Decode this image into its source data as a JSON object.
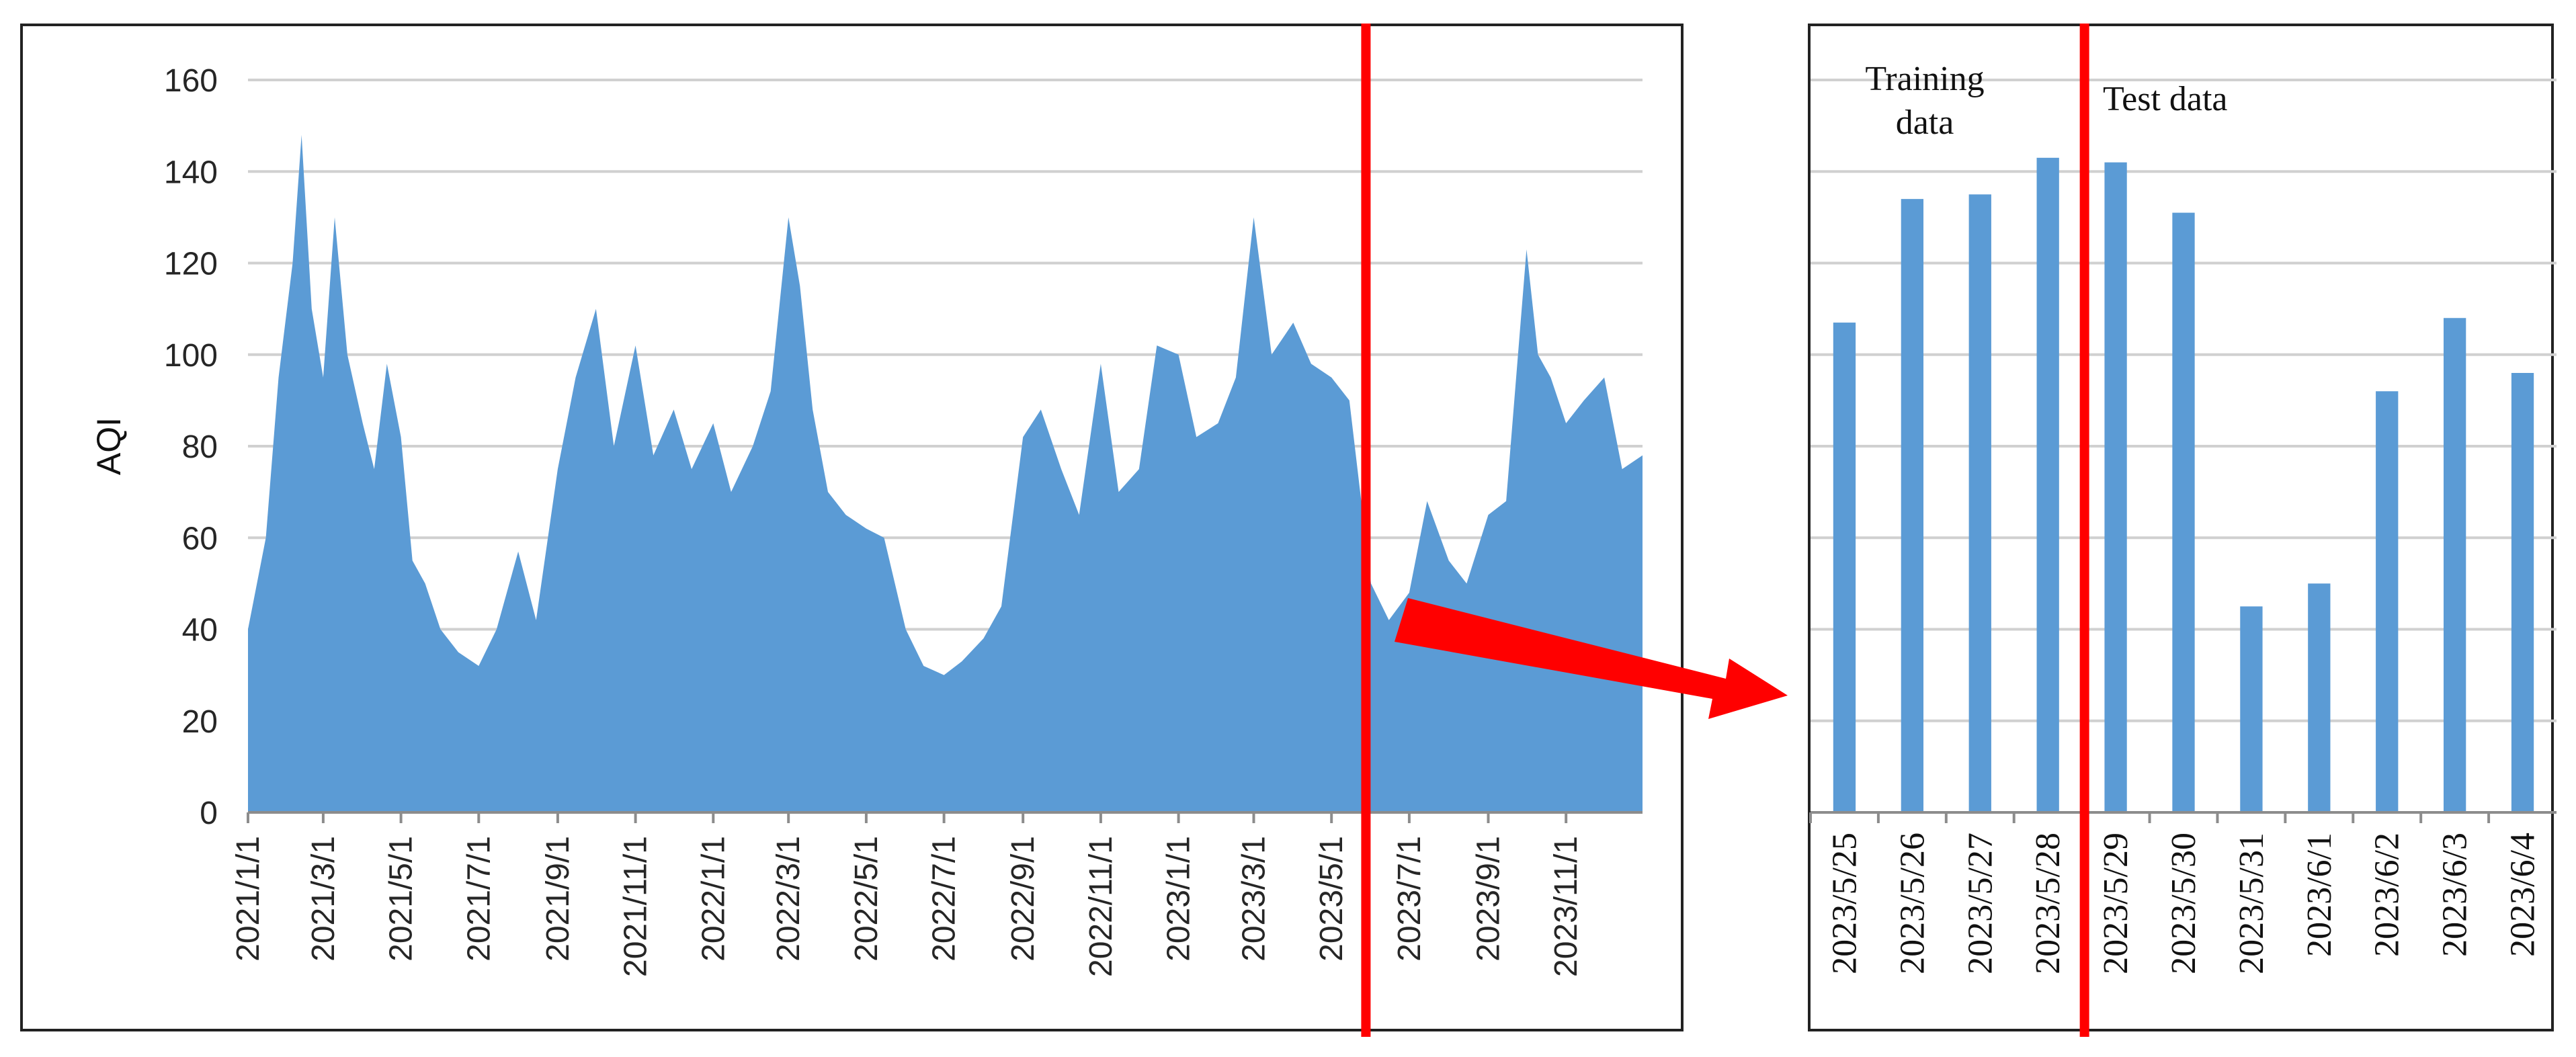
{
  "colors": {
    "series": "#5b9bd5",
    "divider": "#ff0000",
    "arrow": "#ff0000",
    "grid": "#d0d0d0"
  },
  "chart_data": [
    {
      "type": "area",
      "ylabel": "AQI",
      "xlabel": "",
      "ylim": [
        0,
        160
      ],
      "yticks": [
        0,
        20,
        40,
        60,
        80,
        100,
        120,
        140,
        160
      ],
      "grid": true,
      "x_tick_labels": [
        "2021/1/1",
        "2021/3/1",
        "2021/5/1",
        "2021/7/1",
        "2021/9/1",
        "2021/11/1",
        "2022/1/1",
        "2022/3/1",
        "2022/5/1",
        "2022/7/1",
        "2022/9/1",
        "2022/11/1",
        "2023/1/1",
        "2023/3/1",
        "2023/5/1",
        "2023/7/1",
        "2023/9/1",
        "2023/11/1"
      ],
      "divider_date": "2023/5/28",
      "series": [
        {
          "values": [
            {
              "x": "2021/1/1",
              "y": 40
            },
            {
              "x": "2021/1/15",
              "y": 60
            },
            {
              "x": "2021/1/25",
              "y": 95
            },
            {
              "x": "2021/2/5",
              "y": 120
            },
            {
              "x": "2021/2/12",
              "y": 148
            },
            {
              "x": "2021/2/20",
              "y": 110
            },
            {
              "x": "2021/3/1",
              "y": 95
            },
            {
              "x": "2021/3/10",
              "y": 130
            },
            {
              "x": "2021/3/20",
              "y": 100
            },
            {
              "x": "2021/4/1",
              "y": 85
            },
            {
              "x": "2021/4/10",
              "y": 75
            },
            {
              "x": "2021/4/20",
              "y": 98
            },
            {
              "x": "2021/5/1",
              "y": 82
            },
            {
              "x": "2021/5/10",
              "y": 55
            },
            {
              "x": "2021/5/20",
              "y": 50
            },
            {
              "x": "2021/6/1",
              "y": 40
            },
            {
              "x": "2021/6/15",
              "y": 35
            },
            {
              "x": "2021/7/1",
              "y": 32
            },
            {
              "x": "2021/7/15",
              "y": 40
            },
            {
              "x": "2021/8/1",
              "y": 57
            },
            {
              "x": "2021/8/15",
              "y": 42
            },
            {
              "x": "2021/9/1",
              "y": 75
            },
            {
              "x": "2021/9/15",
              "y": 95
            },
            {
              "x": "2021/10/1",
              "y": 110
            },
            {
              "x": "2021/10/15",
              "y": 80
            },
            {
              "x": "2021/11/1",
              "y": 102
            },
            {
              "x": "2021/11/15",
              "y": 78
            },
            {
              "x": "2021/12/1",
              "y": 88
            },
            {
              "x": "2021/12/15",
              "y": 75
            },
            {
              "x": "2022/1/1",
              "y": 85
            },
            {
              "x": "2022/1/15",
              "y": 70
            },
            {
              "x": "2022/2/1",
              "y": 80
            },
            {
              "x": "2022/2/15",
              "y": 92
            },
            {
              "x": "2022/3/1",
              "y": 130
            },
            {
              "x": "2022/3/10",
              "y": 115
            },
            {
              "x": "2022/3/20",
              "y": 88
            },
            {
              "x": "2022/4/1",
              "y": 70
            },
            {
              "x": "2022/4/15",
              "y": 65
            },
            {
              "x": "2022/5/1",
              "y": 62
            },
            {
              "x": "2022/5/15",
              "y": 60
            },
            {
              "x": "2022/6/1",
              "y": 40
            },
            {
              "x": "2022/6/15",
              "y": 32
            },
            {
              "x": "2022/7/1",
              "y": 30
            },
            {
              "x": "2022/7/15",
              "y": 33
            },
            {
              "x": "2022/8/1",
              "y": 38
            },
            {
              "x": "2022/8/15",
              "y": 45
            },
            {
              "x": "2022/9/1",
              "y": 82
            },
            {
              "x": "2022/9/15",
              "y": 88
            },
            {
              "x": "2022/10/1",
              "y": 75
            },
            {
              "x": "2022/10/15",
              "y": 65
            },
            {
              "x": "2022/11/1",
              "y": 98
            },
            {
              "x": "2022/11/15",
              "y": 70
            },
            {
              "x": "2022/12/1",
              "y": 75
            },
            {
              "x": "2022/12/15",
              "y": 102
            },
            {
              "x": "2023/1/1",
              "y": 100
            },
            {
              "x": "2023/1/15",
              "y": 82
            },
            {
              "x": "2023/2/1",
              "y": 85
            },
            {
              "x": "2023/2/15",
              "y": 95
            },
            {
              "x": "2023/3/1",
              "y": 130
            },
            {
              "x": "2023/3/15",
              "y": 100
            },
            {
              "x": "2023/4/1",
              "y": 107
            },
            {
              "x": "2023/4/15",
              "y": 98
            },
            {
              "x": "2023/5/1",
              "y": 95
            },
            {
              "x": "2023/5/15",
              "y": 90
            },
            {
              "x": "2023/6/1",
              "y": 50
            },
            {
              "x": "2023/6/15",
              "y": 42
            },
            {
              "x": "2023/7/1",
              "y": 48
            },
            {
              "x": "2023/7/15",
              "y": 68
            },
            {
              "x": "2023/8/1",
              "y": 55
            },
            {
              "x": "2023/8/15",
              "y": 50
            },
            {
              "x": "2023/9/1",
              "y": 65
            },
            {
              "x": "2023/9/15",
              "y": 68
            },
            {
              "x": "2023/10/1",
              "y": 123
            },
            {
              "x": "2023/10/10",
              "y": 100
            },
            {
              "x": "2023/10/20",
              "y": 95
            },
            {
              "x": "2023/11/1",
              "y": 85
            },
            {
              "x": "2023/11/15",
              "y": 90
            },
            {
              "x": "2023/12/1",
              "y": 95
            },
            {
              "x": "2023/12/15",
              "y": 75
            },
            {
              "x": "2023/12/31",
              "y": 78
            }
          ]
        }
      ]
    },
    {
      "type": "bar",
      "categories": [
        "2023/5/25",
        "2023/5/26",
        "2023/5/27",
        "2023/5/28",
        "2023/5/29",
        "2023/5/30",
        "2023/5/31",
        "2023/6/1",
        "2023/6/2",
        "2023/6/3",
        "2023/6/4"
      ],
      "values": [
        107,
        134,
        135,
        143,
        142,
        131,
        45,
        50,
        92,
        108,
        96
      ],
      "ylim": [
        0,
        160
      ],
      "grid": true,
      "divider_after": "2023/5/28",
      "annotations": {
        "training": [
          "Training",
          "data"
        ],
        "test": "Test data"
      }
    }
  ]
}
